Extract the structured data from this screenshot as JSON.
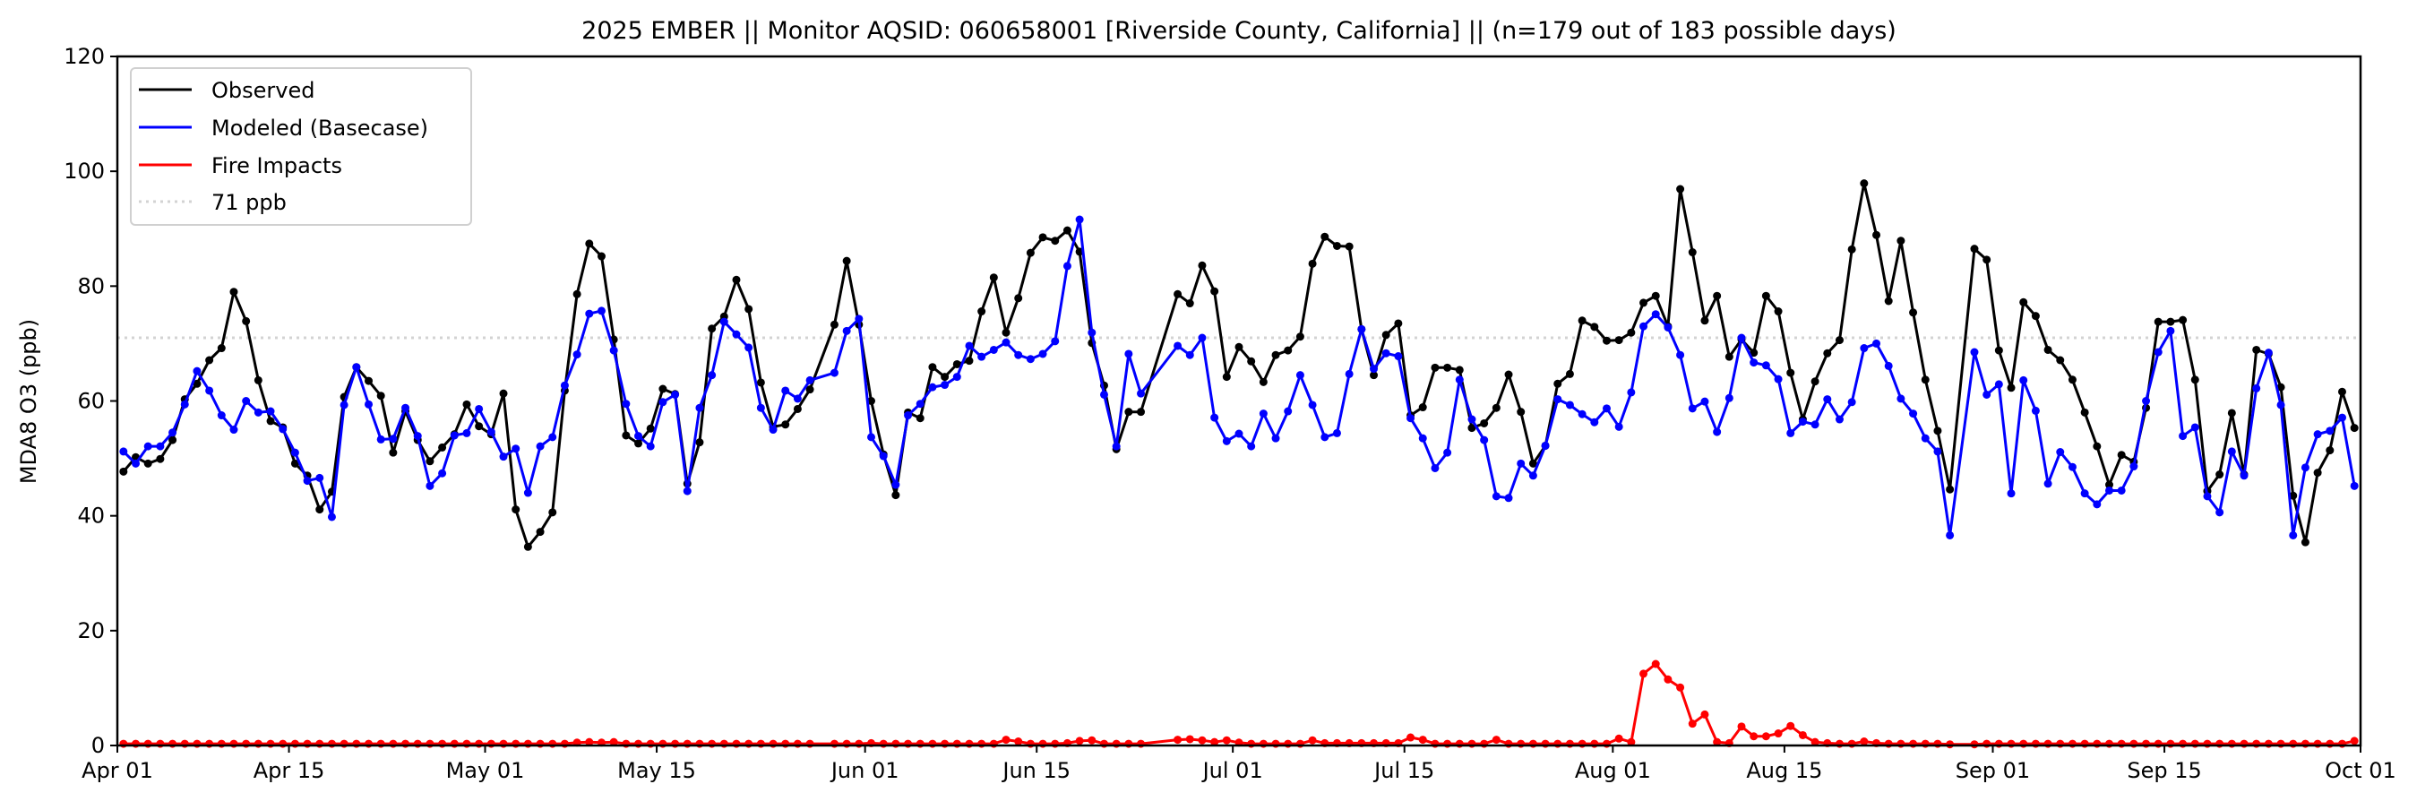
{
  "chart_data": {
    "type": "line",
    "title": "2025 EMBER || Monitor AQSID: 060658001 [Riverside County, California] || (n=179 out of 183 possible days)",
    "xlabel": "",
    "ylabel": "MDA8 O3 (ppb)",
    "ylim": [
      0,
      120
    ],
    "yticks": [
      "0",
      "20",
      "40",
      "60",
      "80",
      "100",
      "120"
    ],
    "x_start": "2025-04-01",
    "x_days": 183,
    "xticks": [
      {
        "day": 0,
        "label": "Apr 01"
      },
      {
        "day": 14,
        "label": "Apr 15"
      },
      {
        "day": 30,
        "label": "May 01"
      },
      {
        "day": 44,
        "label": "May 15"
      },
      {
        "day": 61,
        "label": "Jun 01"
      },
      {
        "day": 75,
        "label": "Jun 15"
      },
      {
        "day": 91,
        "label": "Jul 01"
      },
      {
        "day": 105,
        "label": "Jul 15"
      },
      {
        "day": 122,
        "label": "Aug 01"
      },
      {
        "day": 136,
        "label": "Aug 15"
      },
      {
        "day": 153,
        "label": "Sep 01"
      },
      {
        "day": 167,
        "label": "Sep 15"
      },
      {
        "day": 183,
        "label": "Oct 01"
      }
    ],
    "legend_position": "top-left",
    "threshold": {
      "value": 71,
      "label": "71 ppb",
      "color": "#d3d3d3"
    },
    "series": [
      {
        "name": "Observed",
        "color": "#000000",
        "values": [
          47.7,
          50.2,
          49.1,
          49.9,
          53.2,
          60.3,
          63,
          67.1,
          69.2,
          79,
          73.9,
          63.6,
          56.5,
          55.4,
          49.1,
          47,
          41.1,
          44.2,
          60.7,
          65.9,
          63.5,
          60.9,
          51,
          58.2,
          53.2,
          49.5,
          51.9,
          54.2,
          59.4,
          55.6,
          54.2,
          61.3,
          41.1,
          34.6,
          37.2,
          40.6,
          61.8,
          78.6,
          87.4,
          85.2,
          70.7,
          54,
          52.6,
          55.2,
          62.1,
          61.2,
          45.6,
          52.8,
          72.6,
          74.7,
          81.1,
          76,
          63.2,
          55.5,
          55.9,
          58.6,
          62,
          null,
          73.3,
          84.4,
          73.3,
          60,
          50.7,
          43.6,
          58,
          57,
          65.9,
          64.2,
          66.4,
          67,
          75.6,
          81.5,
          71.9,
          77.9,
          85.8,
          88.5,
          87.9,
          89.7,
          86,
          70.1,
          62.7,
          51.6,
          58.1,
          58.1,
          null,
          null,
          78.6,
          77,
          83.6,
          79.1,
          64.2,
          69.4,
          66.9,
          63.3,
          68,
          68.8,
          71.2,
          83.9,
          88.6,
          87,
          86.9,
          72.5,
          64.5,
          71.5,
          73.5,
          57.5,
          58.9,
          65.8,
          65.8,
          65.4,
          55.3,
          56.1,
          58.8,
          64.6,
          58.1,
          49.1,
          52.2,
          63,
          64.7,
          74,
          72.9,
          70.5,
          70.6,
          71.9,
          77.1,
          78.3,
          73,
          96.9,
          85.9,
          74,
          78.3,
          67.7,
          70.7,
          68.4,
          78.3,
          75.6,
          64.9,
          56.8,
          63.4,
          68.3,
          70.6,
          86.4,
          97.9,
          88.9,
          77.4,
          87.9,
          75.4,
          63.7,
          54.8,
          44.6,
          null,
          86.5,
          84.6,
          68.8,
          62.3,
          77.2,
          74.8,
          68.9,
          67.1,
          63.7,
          58,
          52.1,
          45.4,
          50.6,
          49.4,
          58.8,
          73.8,
          73.8,
          74.1,
          63.7,
          44.3,
          47.2,
          57.9,
          47.2,
          68.9,
          68.2,
          62.4,
          43.5,
          35.4,
          47.5,
          51.4,
          61.6,
          55.3
        ]
      },
      {
        "name": "Modeled (Basecase)",
        "color": "#0000ff",
        "values": [
          51.2,
          49.1,
          52.1,
          52.1,
          54.5,
          59.4,
          65.2,
          61.8,
          57.5,
          55,
          60,
          58,
          58.2,
          55.1,
          51,
          46.1,
          46.6,
          39.8,
          59.3,
          65.9,
          59.4,
          53.3,
          53.4,
          58.8,
          53.9,
          45.2,
          47.4,
          54,
          54.4,
          58.6,
          54.6,
          50.3,
          51.7,
          44,
          52.1,
          53.7,
          62.7,
          68.1,
          75.2,
          75.7,
          68.8,
          59.5,
          53.9,
          52.1,
          59.8,
          61.1,
          44.3,
          58.8,
          64.5,
          73.8,
          71.6,
          69.3,
          58.8,
          55,
          61.8,
          60.4,
          63.6,
          null,
          64.9,
          72.2,
          74.3,
          53.7,
          50.4,
          45.4,
          57.5,
          59.5,
          62.4,
          62.8,
          64.2,
          69.6,
          67.7,
          68.9,
          70.2,
          68,
          67.3,
          68.2,
          70.4,
          83.5,
          91.6,
          71.9,
          61.1,
          52.1,
          68.2,
          61.3,
          null,
          null,
          69.6,
          68,
          71,
          57.1,
          53,
          54.3,
          52.1,
          57.8,
          53.5,
          58.2,
          64.5,
          59.3,
          53.7,
          54.4,
          64.7,
          72.5,
          65.6,
          68.3,
          67.8,
          57,
          53.5,
          48.3,
          51,
          63.7,
          56.8,
          53.2,
          43.4,
          43.1,
          49.1,
          47,
          52.2,
          60.3,
          59.3,
          57.7,
          56.3,
          58.7,
          55.5,
          61.5,
          73,
          75.1,
          72.8,
          68,
          58.7,
          59.9,
          54.6,
          60.5,
          71,
          66.7,
          66.2,
          63.8,
          54.4,
          56.4,
          55.9,
          60.3,
          56.8,
          59.8,
          69.2,
          70,
          66.1,
          60.4,
          57.8,
          53.5,
          51.2,
          36.6,
          null,
          68.5,
          61.1,
          62.9,
          43.9,
          63.6,
          58.3,
          45.6,
          51.1,
          48.5,
          43.9,
          42,
          44.4,
          44.4,
          48.6,
          60,
          68.5,
          72.2,
          53.9,
          55.4,
          43.4,
          40.6,
          51.2,
          47,
          62.2,
          68.4,
          59.3,
          36.6,
          48.4,
          54.2,
          54.8,
          57.1,
          45.2
        ]
      },
      {
        "name": "Fire Impacts",
        "color": "#ff0000",
        "values": [
          0.3,
          0.3,
          0.3,
          0.3,
          0.3,
          0.3,
          0.3,
          0.3,
          0.3,
          0.3,
          0.3,
          0.3,
          0.3,
          0.3,
          0.3,
          0.3,
          0.3,
          0.3,
          0.3,
          0.3,
          0.3,
          0.3,
          0.3,
          0.3,
          0.3,
          0.3,
          0.3,
          0.3,
          0.3,
          0.3,
          0.3,
          0.3,
          0.3,
          0.3,
          0.3,
          0.3,
          0.3,
          0.5,
          0.6,
          0.5,
          0.6,
          0.3,
          0.3,
          0.3,
          0.3,
          0.3,
          0.3,
          0.3,
          0.3,
          0.3,
          0.3,
          0.3,
          0.3,
          0.3,
          0.3,
          0.3,
          0.3,
          null,
          0.3,
          0.3,
          0.3,
          0.4,
          0.3,
          0.3,
          0.3,
          0.3,
          0.3,
          0.3,
          0.3,
          0.3,
          0.3,
          0.3,
          1.0,
          0.7,
          0.3,
          0.3,
          0.3,
          0.4,
          0.8,
          0.9,
          0.3,
          0.3,
          0.3,
          0.3,
          null,
          null,
          1.0,
          1.1,
          0.9,
          0.6,
          0.9,
          0.5,
          0.3,
          0.3,
          0.3,
          0.3,
          0.3,
          0.9,
          0.4,
          0.4,
          0.4,
          0.4,
          0.4,
          0.4,
          0.4,
          1.4,
          1.0,
          0.3,
          0.3,
          0.3,
          0.3,
          0.3,
          1.0,
          0.3,
          0.3,
          0.3,
          0.3,
          0.3,
          0.3,
          0.3,
          0.3,
          0.3,
          1.2,
          0.6,
          12.5,
          14.2,
          11.5,
          10.1,
          3.8,
          5.4,
          0.6,
          0.4,
          3.3,
          1.6,
          1.6,
          2.1,
          3.4,
          1.8,
          0.6,
          0.4,
          0.3,
          0.3,
          0.7,
          0.4,
          0.3,
          0.3,
          0.3,
          0.3,
          0.3,
          0.2,
          null,
          0.2,
          0.3,
          0.3,
          0.3,
          0.3,
          0.3,
          0.3,
          0.3,
          0.3,
          0.3,
          0.3,
          0.3,
          0.3,
          0.3,
          0.3,
          0.3,
          0.3,
          0.3,
          0.3,
          0.3,
          0.3,
          0.3,
          0.3,
          0.3,
          0.3,
          0.3,
          0.3,
          0.3,
          0.3,
          0.3,
          0.3,
          0.8
        ]
      }
    ]
  }
}
